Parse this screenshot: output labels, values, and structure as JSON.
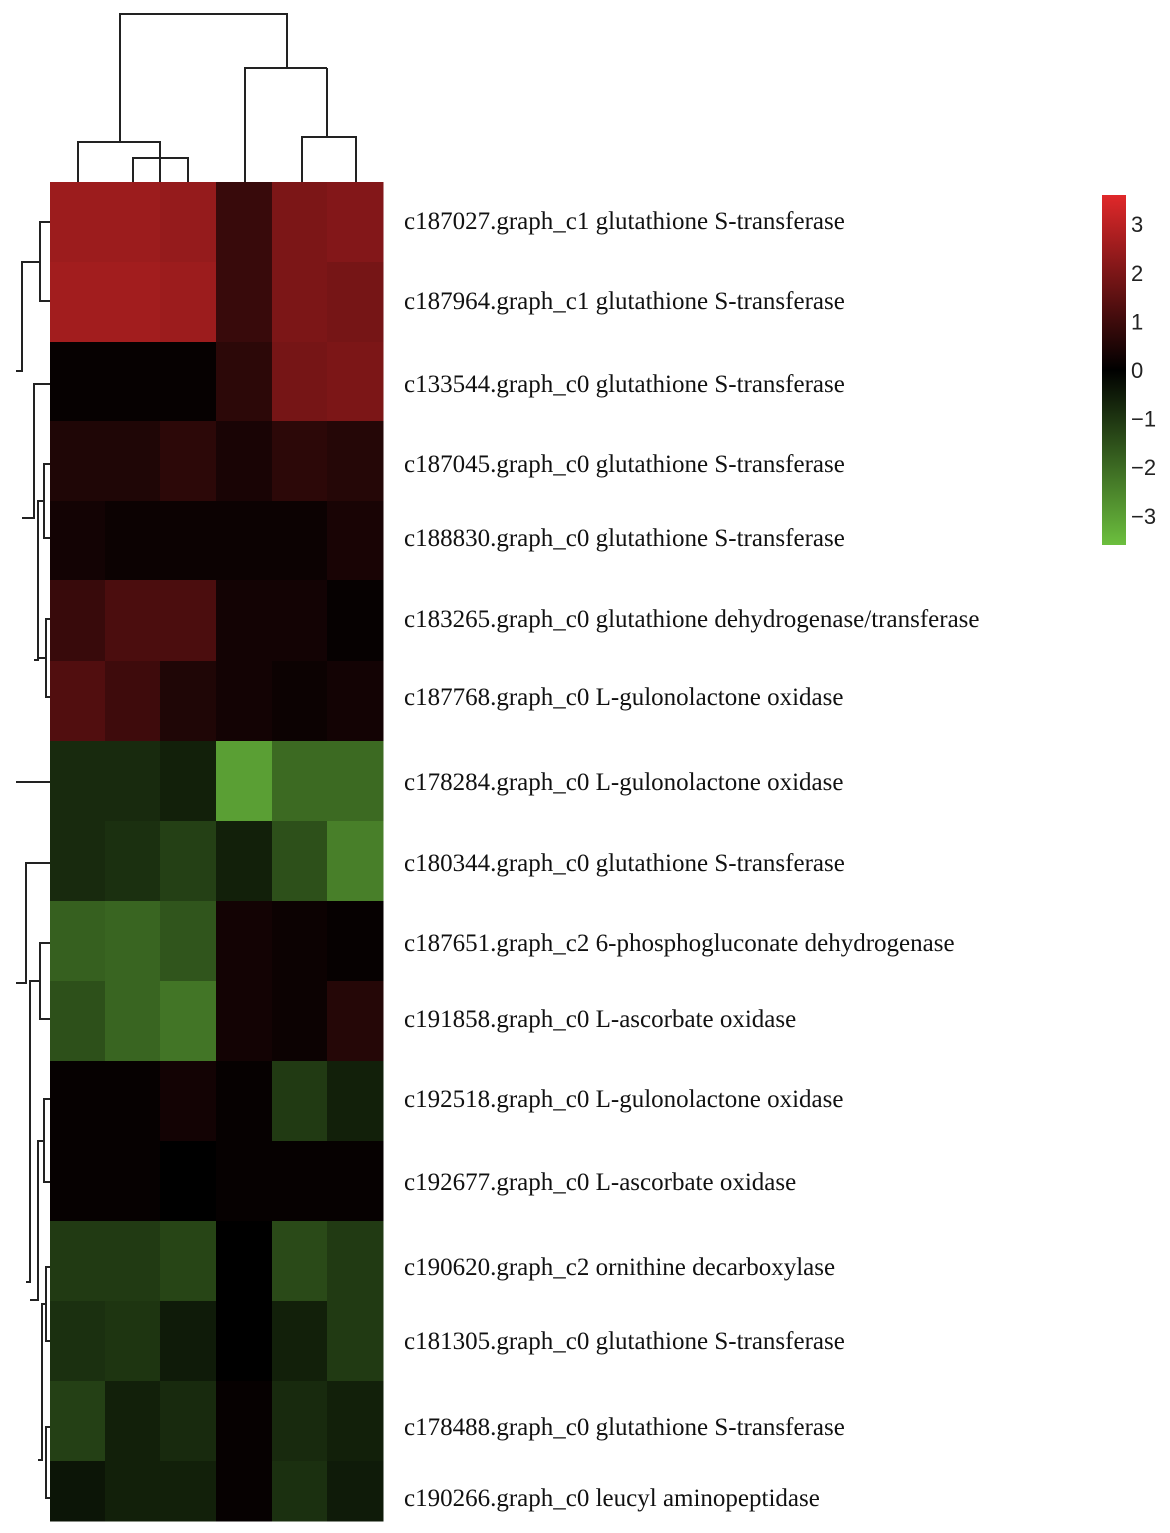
{
  "chart_data": {
    "type": "heatmap",
    "title": "",
    "xlabel": "",
    "ylabel": "",
    "rows": [
      "c187027.graph_c1  glutathione S-transferase",
      "c187964.graph_c1  glutathione S-transferase",
      "c133544.graph_c0  glutathione S-transferase",
      "c187045.graph_c0  glutathione S-transferase",
      "c188830.graph_c0  glutathione S-transferase",
      "c183265.graph_c0  glutathione dehydrogenase/transferase",
      "c187768.graph_c0 L-gulonolactone oxidase",
      "c178284.graph_c0 L-gulonolactone oxidase",
      "c180344.graph_c0  glutathione S-transferase",
      "c187651.graph_c2  6-phosphogluconate dehydrogenase",
      "c191858.graph_c0 L-ascorbate oxidase",
      "c192518.graph_c0 L-gulonolactone oxidase",
      "c192677.graph_c0 L-ascorbate oxidase",
      "c190620.graph_c2  ornithine decarboxylase",
      "c181305.graph_c0  glutathione S-transferase",
      "c178488.graph_c0  glutathione S-transferase",
      "c190266.graph_c0  leucyl aminopeptidase"
    ],
    "column_count": 6,
    "values": [
      [
        2.5,
        2.5,
        2.4,
        0.9,
        2.0,
        2.1
      ],
      [
        2.6,
        2.6,
        2.5,
        0.9,
        2.0,
        1.9
      ],
      [
        0.1,
        0.1,
        0.1,
        0.7,
        1.9,
        2.0
      ],
      [
        0.5,
        0.5,
        0.7,
        0.4,
        0.7,
        0.6
      ],
      [
        0.3,
        0.2,
        0.2,
        0.2,
        0.2,
        0.4
      ],
      [
        0.9,
        1.2,
        1.2,
        0.3,
        0.3,
        0.1
      ],
      [
        1.3,
        1.0,
        0.5,
        0.3,
        0.2,
        0.3
      ],
      [
        -0.8,
        -0.8,
        -0.6,
        -3.0,
        -2.0,
        -2.0
      ],
      [
        -0.8,
        -0.9,
        -1.2,
        -0.6,
        -1.5,
        -2.4
      ],
      [
        -1.8,
        -1.9,
        -1.6,
        0.3,
        0.2,
        0.1
      ],
      [
        -1.5,
        -1.9,
        -2.2,
        0.3,
        0.2,
        0.6
      ],
      [
        0.1,
        0.1,
        0.3,
        0.1,
        -1.1,
        -0.6
      ],
      [
        0.1,
        0.1,
        0.0,
        0.1,
        0.1,
        0.1
      ],
      [
        -1.1,
        -1.1,
        -1.3,
        0.0,
        -1.4,
        -1.1
      ],
      [
        -0.9,
        -1.0,
        -0.5,
        0.0,
        -0.6,
        -1.1
      ],
      [
        -1.2,
        -0.6,
        -0.8,
        0.1,
        -0.8,
        -0.6
      ],
      [
        -0.4,
        -0.6,
        -0.6,
        0.1,
        -0.9,
        -0.5
      ]
    ],
    "colorbar": {
      "range": [
        -3.6,
        3.6
      ],
      "ticks": [
        3,
        2,
        1,
        0,
        -1,
        -2,
        -3
      ],
      "tick_labels": [
        "3",
        "2",
        "1",
        "0",
        "−1",
        "−2",
        "−3"
      ],
      "colors": {
        "high": "#e0282a",
        "mid": "#000000",
        "low": "#6cbf3e"
      }
    },
    "legend": "right",
    "grid": false,
    "column_dendrogram": true,
    "row_dendrogram": true
  }
}
